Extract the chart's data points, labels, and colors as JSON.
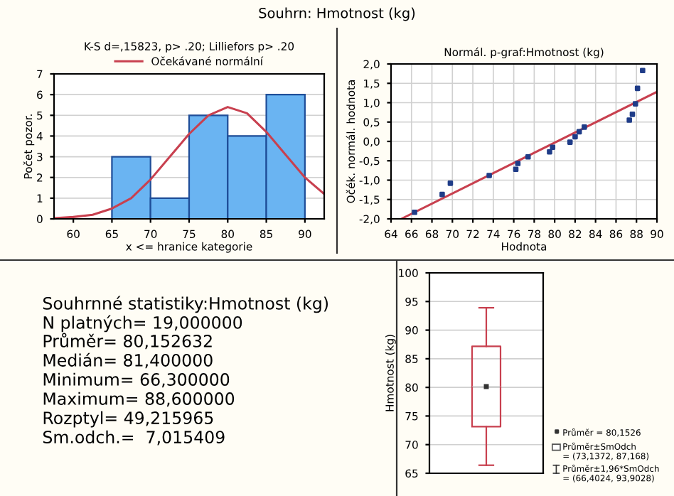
{
  "chart_data": [
    {
      "type": "histogram",
      "title": "K-S d=,15823, p> .20; Lilliefors p> .20",
      "xlabel": "x <= hranice kategorie",
      "ylabel": "Počet pozor.",
      "annotations": [
        "Souhrn: Hmotnost (kg)"
      ],
      "bins": [
        60,
        65,
        70,
        75,
        80,
        85,
        90
      ],
      "values": [
        0,
        3,
        1,
        5,
        4,
        6
      ],
      "color": "#6ab4f2",
      "series": [
        {
          "type": "line",
          "name": "Očekávané normální",
          "color": "#c8404f",
          "x": [
            57.5,
            60,
            62.5,
            65,
            67.5,
            70,
            72.5,
            75,
            77.5,
            80,
            82.5,
            85,
            87.5,
            90,
            92.5
          ],
          "values": [
            0.03,
            0.09,
            0.2,
            0.5,
            1.0,
            1.9,
            3.0,
            4.1,
            5.0,
            5.4,
            5.1,
            4.2,
            3.1,
            2.0,
            1.2
          ]
        }
      ],
      "xlim": [
        57.5,
        92.5
      ],
      "xticks": [
        60,
        65,
        70,
        75,
        80,
        85,
        90
      ],
      "ylim": [
        0,
        7
      ],
      "yticks": [
        0,
        1,
        2,
        3,
        4,
        5,
        6,
        7
      ],
      "grid": "y",
      "legend": "top"
    },
    {
      "type": "scatter",
      "title": "Normál. p-graf:Hmotnost (kg)",
      "xlabel": "Hodnota",
      "ylabel": "Očék. normál. hodnota",
      "series": [
        {
          "type": "scatter",
          "marker": "square",
          "color": "#1f3c88",
          "x": [
            66.3,
            69.0,
            69.8,
            73.6,
            76.2,
            76.4,
            77.4,
            79.5,
            79.8,
            81.5,
            82.0,
            82.4,
            82.9,
            87.3,
            87.6,
            87.9,
            88.1,
            88.6
          ],
          "values": [
            -1.83,
            -1.37,
            -1.08,
            -0.88,
            -0.72,
            -0.57,
            -0.4,
            -0.27,
            -0.15,
            -0.02,
            0.12,
            0.25,
            0.37,
            0.55,
            0.7,
            0.97,
            1.37,
            1.83
          ]
        },
        {
          "type": "line",
          "color": "#c8404f",
          "x": [
            65,
            90
          ],
          "values": [
            -2.0,
            1.28
          ]
        }
      ],
      "xlim": [
        64,
        90
      ],
      "xticks": [
        64,
        66,
        68,
        70,
        72,
        74,
        76,
        78,
        80,
        82,
        84,
        86,
        88,
        90
      ],
      "ylim": [
        -2,
        2
      ],
      "yticks": [
        {
          "value": -2,
          "label": "-2,0"
        },
        {
          "value": -1.5,
          "label": "-1,5"
        },
        {
          "value": -1,
          "label": "-1,0"
        },
        {
          "value": -0.5,
          "label": "-0,5"
        },
        {
          "value": 0,
          "label": "0,0"
        },
        {
          "value": 0.5,
          "label": "0,5"
        },
        {
          "value": 1,
          "label": "1,0"
        },
        {
          "value": 1.5,
          "label": "1,5"
        },
        {
          "value": 2,
          "label": "2,0"
        }
      ],
      "grid": true
    },
    {
      "type": "other",
      "annotations": [
        "Souhrnné statistiky:Hmotnost (kg)",
        "N platných= 19,000000",
        "Průměr= 80,152632",
        "Medián= 81,400000",
        "Minimum= 66,300000",
        "Maximum= 88,600000",
        "Rozptyl= 49,215965",
        "Sm.odch.=  7,015409"
      ]
    },
    {
      "type": "box",
      "ylabel": "Hmotnost (kg)",
      "categories": [
        null
      ],
      "color": "#c8404f",
      "boxes": [
        {
          "low": 66.4024,
          "q1": 73.1372,
          "median": 80.1526,
          "q3": 87.168,
          "high": 93.9028,
          "mean": 80.1526
        }
      ],
      "annotations": [
        "Průměr = 80,1526",
        "Průměr±SmOdch\n= (73,1372, 87,168)",
        "Průměr±1,96*SmOdch\n= (66,4024, 93,9028)"
      ],
      "ylim": [
        65,
        100
      ],
      "yticks": [
        65,
        70,
        75,
        80,
        85,
        90,
        95,
        100
      ],
      "grid": "y"
    }
  ]
}
